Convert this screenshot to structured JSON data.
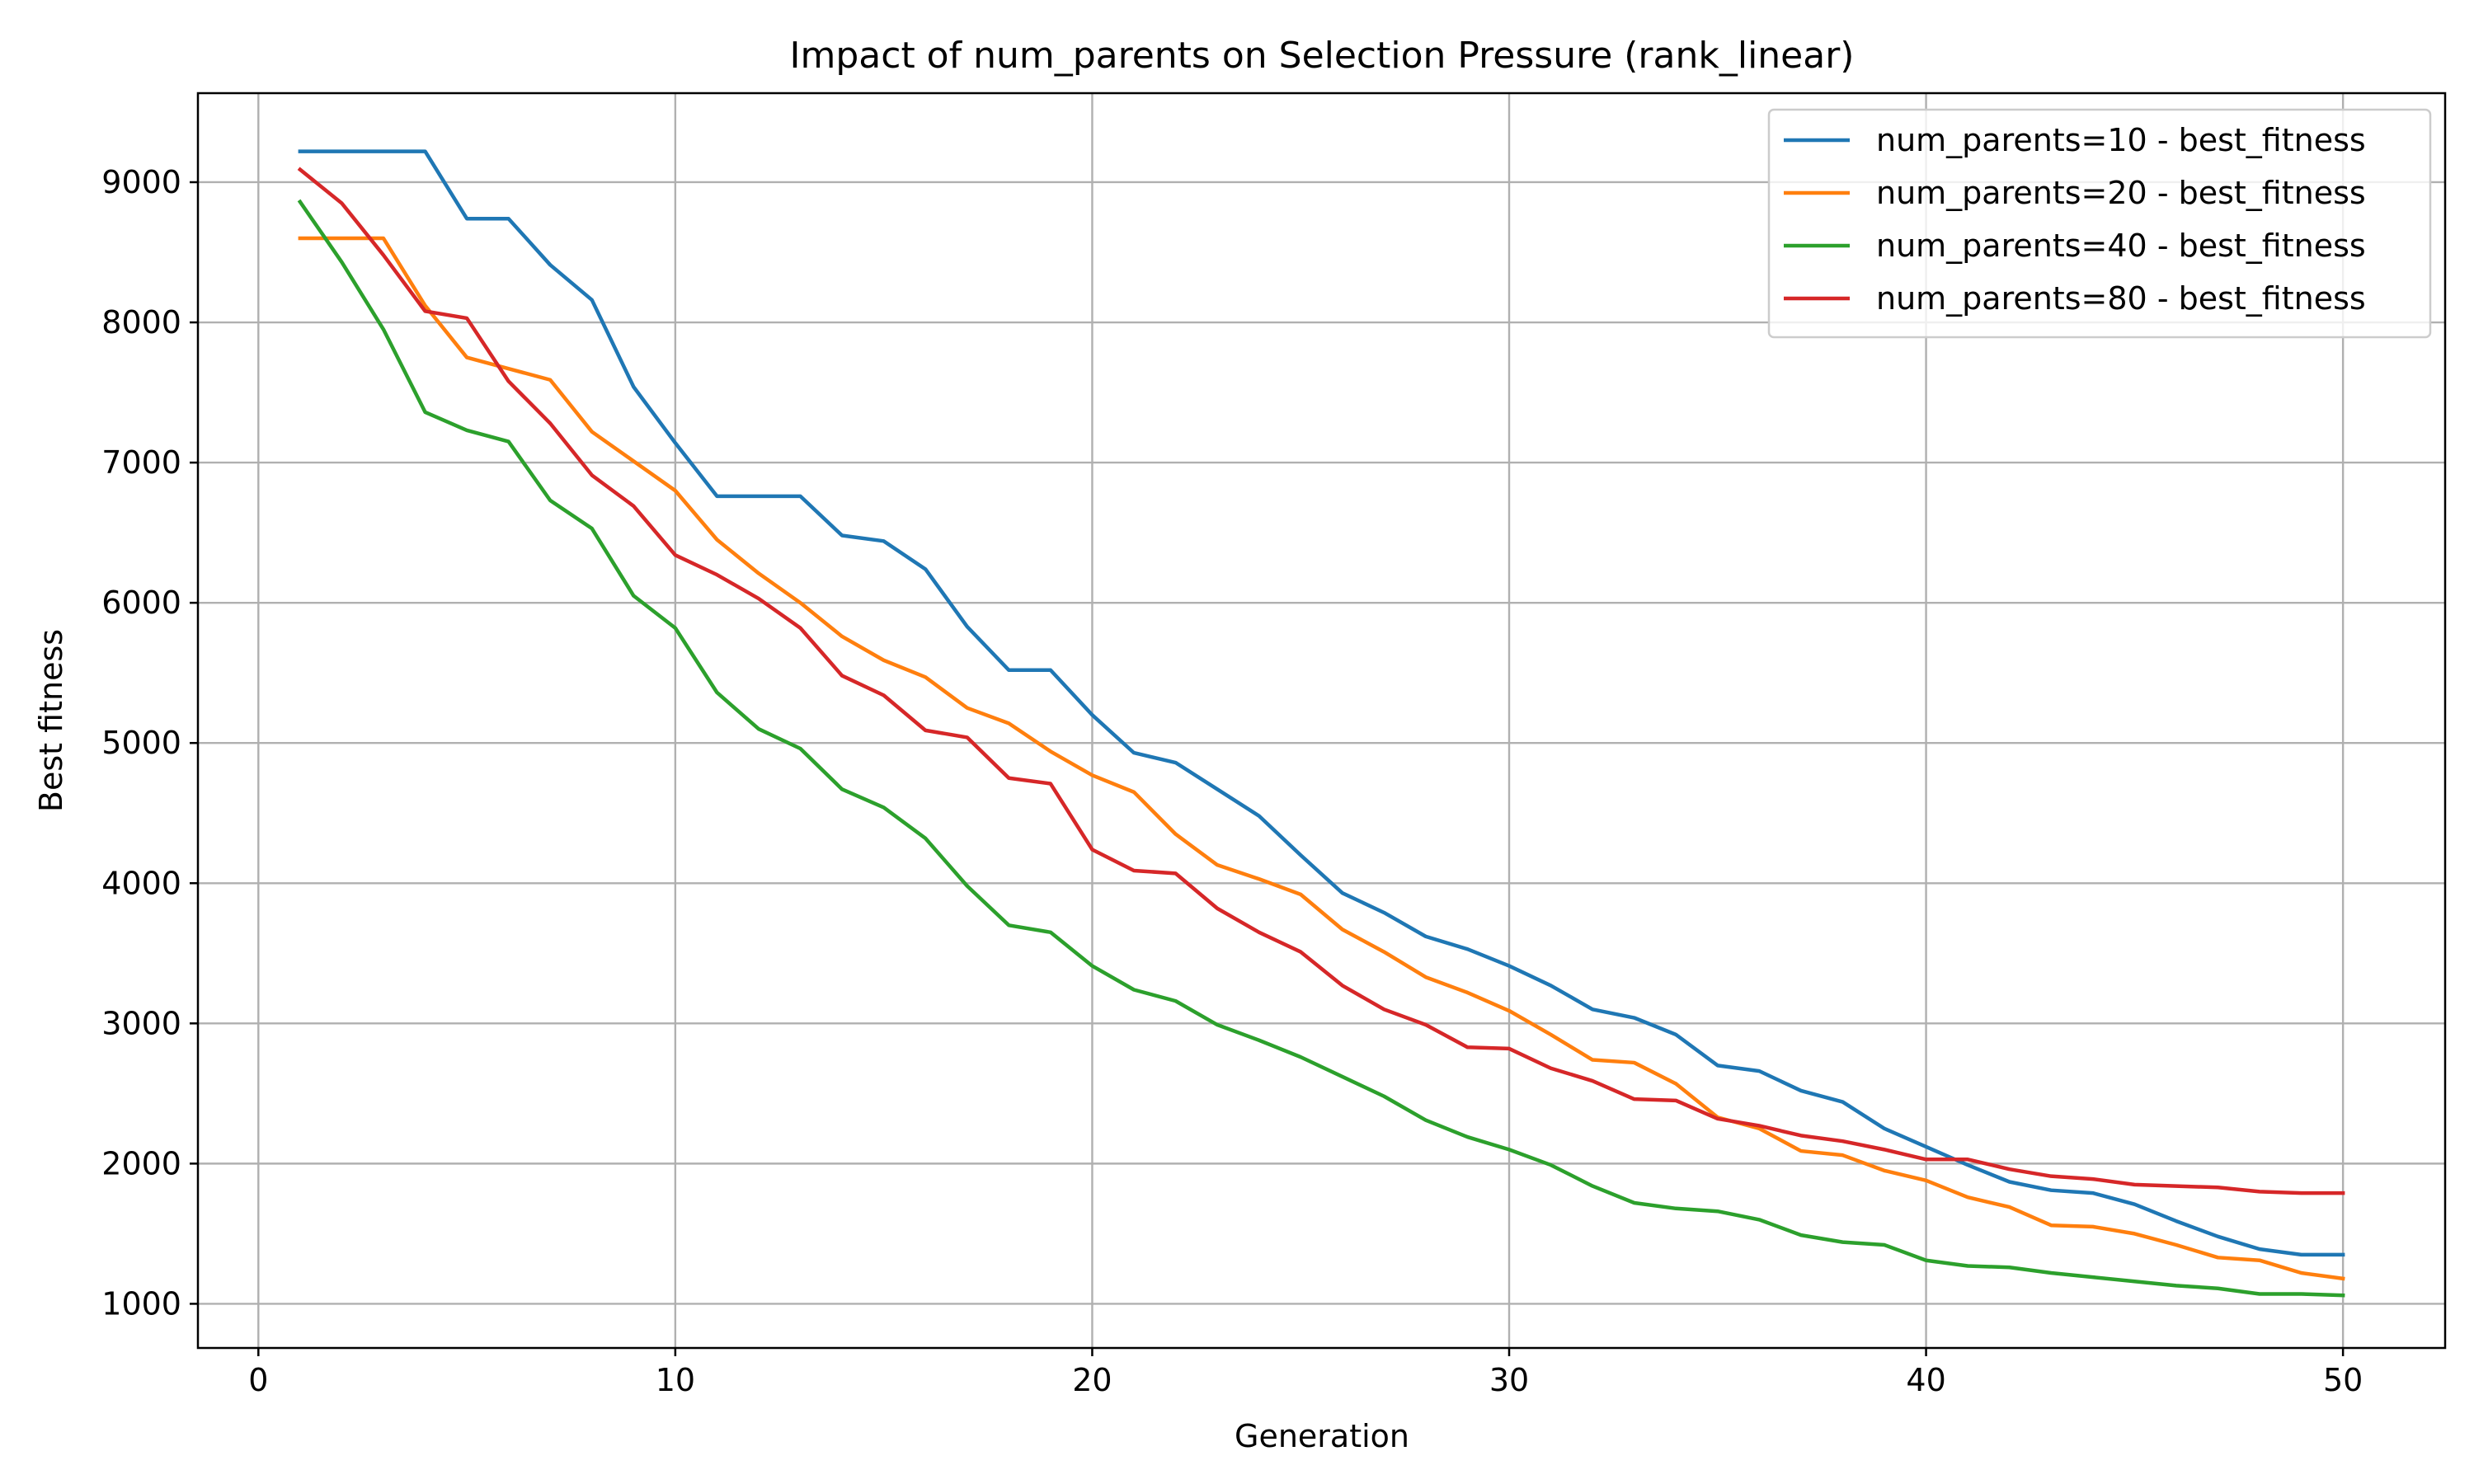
{
  "chart_data": {
    "type": "line",
    "title": "Impact of num_parents on Selection Pressure (rank_linear)",
    "xlabel": "Generation",
    "ylabel": "Best fitness",
    "xlim": [
      -1.45,
      52.45
    ],
    "ylim": [
      685,
      9635
    ],
    "xticks": [
      0,
      10,
      20,
      30,
      40,
      50
    ],
    "yticks": [
      1000,
      2000,
      3000,
      4000,
      5000,
      6000,
      7000,
      8000,
      9000
    ],
    "grid": true,
    "legend_position": "top-right",
    "x": [
      1,
      2,
      3,
      4,
      5,
      6,
      7,
      8,
      9,
      10,
      11,
      12,
      13,
      14,
      15,
      16,
      17,
      18,
      19,
      20,
      21,
      22,
      23,
      24,
      25,
      26,
      27,
      28,
      29,
      30,
      31,
      32,
      33,
      34,
      35,
      36,
      37,
      38,
      39,
      40,
      41,
      42,
      43,
      44,
      45,
      46,
      47,
      48,
      49,
      50
    ],
    "series": [
      {
        "name": "num_parents=10 - best_fitness",
        "color": "#1f77b4",
        "values": [
          9220,
          9220,
          9220,
          9220,
          8740,
          8740,
          8410,
          8160,
          7540,
          7140,
          6760,
          6760,
          6760,
          6480,
          6440,
          6240,
          5830,
          5520,
          5520,
          5200,
          4930,
          4860,
          4670,
          4480,
          4200,
          3930,
          3790,
          3620,
          3530,
          3410,
          3270,
          3100,
          3040,
          2920,
          2700,
          2660,
          2520,
          2440,
          2250,
          2120,
          1990,
          1870,
          1810,
          1790,
          1710,
          1590,
          1480,
          1390,
          1350,
          1350
        ]
      },
      {
        "name": "num_parents=20 - best_fitness",
        "color": "#ff7f0e",
        "values": [
          8600,
          8600,
          8600,
          8120,
          7750,
          7670,
          7590,
          7220,
          7010,
          6800,
          6450,
          6210,
          6000,
          5760,
          5590,
          5470,
          5250,
          5140,
          4940,
          4770,
          4650,
          4350,
          4130,
          4030,
          3920,
          3670,
          3510,
          3330,
          3220,
          3090,
          2920,
          2740,
          2720,
          2570,
          2330,
          2250,
          2090,
          2060,
          1950,
          1880,
          1760,
          1690,
          1560,
          1550,
          1500,
          1420,
          1330,
          1310,
          1220,
          1180
        ]
      },
      {
        "name": "num_parents=40 - best_fitness",
        "color": "#2ca02c",
        "values": [
          8860,
          8430,
          7950,
          7360,
          7230,
          7150,
          6730,
          6530,
          6050,
          5820,
          5360,
          5100,
          4960,
          4670,
          4540,
          4320,
          3980,
          3700,
          3650,
          3410,
          3240,
          3160,
          2990,
          2880,
          2760,
          2620,
          2480,
          2310,
          2190,
          2100,
          1990,
          1840,
          1720,
          1680,
          1660,
          1600,
          1490,
          1440,
          1420,
          1310,
          1270,
          1260,
          1220,
          1190,
          1160,
          1130,
          1110,
          1070,
          1070,
          1060
        ]
      },
      {
        "name": "num_parents=80 - best_fitness",
        "color": "#d62728",
        "values": [
          9090,
          8850,
          8480,
          8080,
          8030,
          7580,
          7280,
          6910,
          6690,
          6340,
          6200,
          6030,
          5820,
          5480,
          5340,
          5090,
          5040,
          4750,
          4710,
          4240,
          4090,
          4070,
          3820,
          3650,
          3510,
          3270,
          3100,
          2990,
          2830,
          2820,
          2680,
          2590,
          2460,
          2450,
          2320,
          2270,
          2200,
          2160,
          2100,
          2030,
          2030,
          1960,
          1910,
          1890,
          1850,
          1840,
          1830,
          1800,
          1790,
          1790
        ]
      }
    ]
  }
}
